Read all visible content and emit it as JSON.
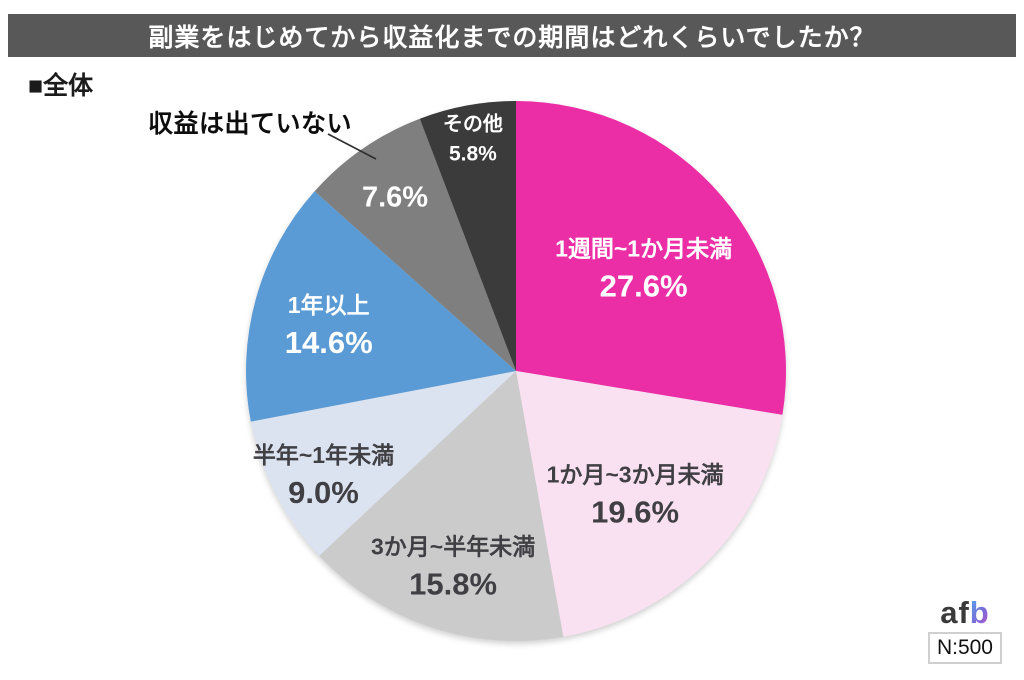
{
  "page": {
    "title": "副業をはじめてから収益化までの期間はどれくらいでしたか？",
    "group_label": "■全体",
    "colors": {
      "title_bar_bg": "#585858",
      "logo_af": "#3A3A3A",
      "logo_b_gradient": [
        "#53A4EA",
        "#C253C9"
      ]
    },
    "footer": {
      "logo_text_af": "af",
      "logo_text_b": "b",
      "sample_label": "N:500"
    }
  },
  "chart_data": {
    "type": "pie",
    "title": "副業をはじめてから収益化までの期間はどれくらいでしたか？",
    "group_label": "■全体",
    "sample_size": "N:500",
    "unit": "%",
    "total": 100.0,
    "direction": "clockwise",
    "start_angle_deg": 0,
    "legend": "none",
    "slices": [
      {
        "label": "1週間~1か月未満",
        "value": 27.6,
        "color": "#EC2EA6",
        "text_color": "#FFFFFF",
        "label_r": 0.62,
        "label_mode": "name+pct",
        "size": "large"
      },
      {
        "label": "1か月~3か月未満",
        "value": 19.6,
        "color": "#FAE1F2",
        "text_color": "#3F3F44",
        "label_r": 0.62,
        "label_mode": "name+pct",
        "size": "large"
      },
      {
        "label": "3か月~半年未満",
        "value": 15.8,
        "color": "#CBCBCB",
        "text_color": "#3F3F44",
        "label_r": 0.74,
        "label_mode": "name+pct",
        "size": "large"
      },
      {
        "label": "半年~1年未満",
        "value": 9.0,
        "color": "#DCE3F0",
        "text_color": "#3F3F44",
        "label_r": 0.8,
        "label_mode": "name+pct",
        "size": "large"
      },
      {
        "label": "1年以上",
        "value": 14.6,
        "color": "#5B9BD5",
        "text_color": "#FFFFFF",
        "label_r": 0.72,
        "label_mode": "name+pct",
        "size": "large"
      },
      {
        "label": "収益は出ていない",
        "value": 7.6,
        "color": "#7F7F7F",
        "text_color": "#FFFFFF",
        "label_r": 0.79,
        "label_mode": "pct-only",
        "size": "large",
        "callout": true
      },
      {
        "label": "その他",
        "value": 5.8,
        "color": "#3B3B3B",
        "text_color": "#FFFFFF",
        "label_r": 0.88,
        "label_mode": "name+pct",
        "size": "small"
      }
    ]
  }
}
